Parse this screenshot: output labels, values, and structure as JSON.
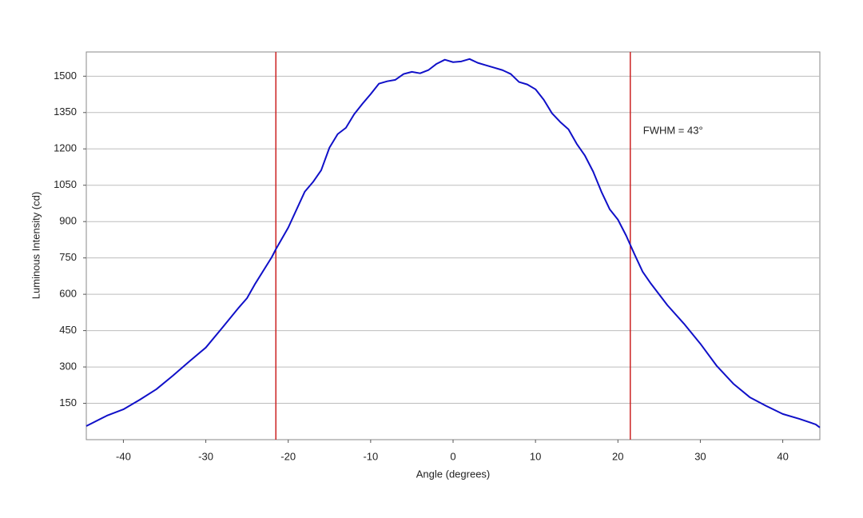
{
  "chart_data": {
    "type": "line",
    "xlabel": "Angle (degrees)",
    "ylabel": "Luminous Intensity (cd)",
    "annotation": "FWHM = 43°",
    "x": [
      -44.5,
      -42,
      -40,
      -38,
      -36,
      -34,
      -32,
      -30,
      -28,
      -26,
      -25,
      -24,
      -22,
      -21.5,
      -20,
      -18,
      -17,
      -16,
      -15,
      -14,
      -13,
      -12,
      -11,
      -10,
      -9,
      -8,
      -7,
      -6,
      -5,
      -4,
      -3,
      -2,
      -1,
      0,
      1,
      2,
      3,
      4,
      5,
      6,
      7,
      8,
      9,
      10,
      11,
      12,
      13,
      14,
      15,
      16,
      17,
      18,
      19,
      20,
      21,
      22,
      23,
      24,
      26,
      28,
      30,
      32,
      34,
      36,
      38,
      40,
      42,
      44,
      44.5
    ],
    "series": [
      {
        "color": "#1010c8",
        "values": [
          56,
          99,
          125,
          165,
          208,
          264,
          323,
          380,
          462,
          545,
          584,
          644,
          753,
          786,
          875,
          1023,
          1063,
          1112,
          1205,
          1261,
          1287,
          1343,
          1386,
          1426,
          1469,
          1479,
          1485,
          1509,
          1518,
          1512,
          1525,
          1551,
          1568,
          1558,
          1561,
          1571,
          1555,
          1545,
          1535,
          1525,
          1509,
          1476,
          1466,
          1446,
          1403,
          1347,
          1311,
          1281,
          1221,
          1172,
          1106,
          1023,
          951,
          908,
          842,
          766,
          693,
          644,
          555,
          479,
          396,
          304,
          231,
          175,
          139,
          106,
          86,
          63,
          50
        ]
      }
    ],
    "vlines": {
      "values": [
        -21.5,
        21.5
      ],
      "color": "#cc2222"
    },
    "xlim": [
      -44.5,
      44.5
    ],
    "xticks": [
      -40,
      -30,
      -20,
      -10,
      0,
      10,
      20,
      30,
      40
    ],
    "ylim": [
      0,
      1600
    ],
    "yticks": [
      150,
      300,
      450,
      600,
      750,
      900,
      1050,
      1200,
      1350,
      1500
    ],
    "grid": true
  }
}
